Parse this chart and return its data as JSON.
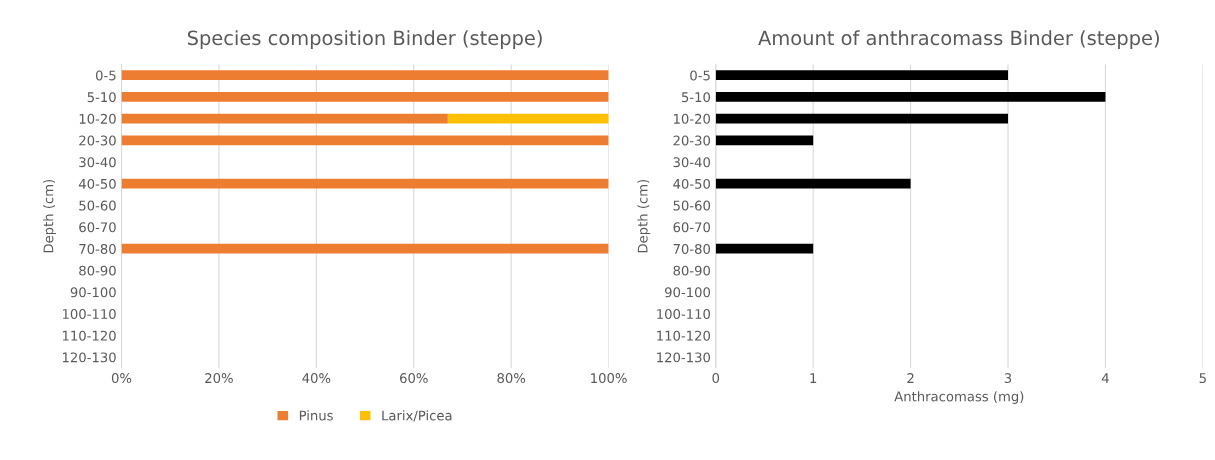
{
  "chart_data": [
    {
      "type": "bar",
      "orientation": "horizontal",
      "stacked": true,
      "title": "Species composition Binder (steppe)",
      "ylabel": "Depth (cm)",
      "categories": [
        "0-5",
        "5-10",
        "10-20",
        "20-30",
        "30-40",
        "40-50",
        "50-60",
        "60-70",
        "70-80",
        "80-90",
        "90-100",
        "100-110",
        "110-120",
        "120-130"
      ],
      "series": [
        {
          "name": "Pinus",
          "color": "#ed7d31",
          "values": [
            100,
            100,
            67,
            100,
            null,
            100,
            null,
            null,
            100,
            null,
            null,
            null,
            null,
            null
          ]
        },
        {
          "name": "Larix/Picea",
          "color": "#ffc000",
          "values": [
            null,
            null,
            33,
            null,
            null,
            null,
            null,
            null,
            null,
            null,
            null,
            null,
            null,
            null
          ]
        }
      ],
      "xlim": [
        0,
        100
      ],
      "xticks": [
        {
          "value": 0,
          "label": "0%"
        },
        {
          "value": 20,
          "label": "20%"
        },
        {
          "value": 40,
          "label": "40%"
        },
        {
          "value": 60,
          "label": "60%"
        },
        {
          "value": 80,
          "label": "80%"
        },
        {
          "value": 100,
          "label": "100%"
        }
      ],
      "grid": "x",
      "legend": "bottom"
    },
    {
      "type": "bar",
      "orientation": "horizontal",
      "title": "Amount of anthracomass Binder (steppe)",
      "ylabel": "Depth (cm)",
      "xlabel": "Anthracomass (mg)",
      "categories": [
        "0-5",
        "5-10",
        "10-20",
        "20-30",
        "30-40",
        "40-50",
        "50-60",
        "60-70",
        "70-80",
        "80-90",
        "90-100",
        "100-110",
        "110-120",
        "120-130"
      ],
      "series": [
        {
          "color": "#000000",
          "values": [
            3,
            4,
            3,
            1,
            null,
            2,
            null,
            null,
            1,
            null,
            null,
            null,
            null,
            null
          ]
        }
      ],
      "xlim": [
        0,
        5
      ],
      "xticks": [
        0,
        1,
        2,
        3,
        4,
        5
      ],
      "grid": "x",
      "legend": false
    }
  ]
}
